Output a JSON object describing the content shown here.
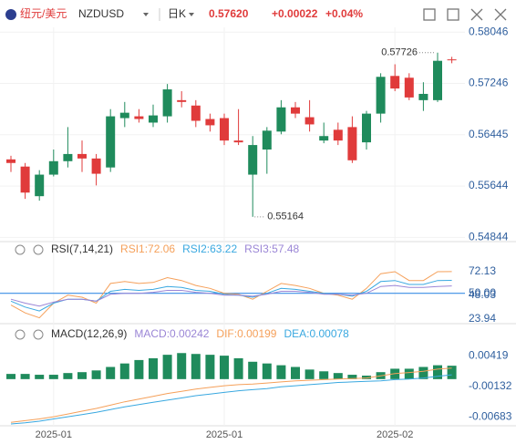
{
  "header": {
    "pair_cn": "纽元/美元",
    "symbol": "NZDUSD",
    "period": "日K",
    "price": "0.57620",
    "change": "+0.00022",
    "change_pct": "+0.04%"
  },
  "chart_data": [
    {
      "type": "candlestick",
      "up_color": "#1f8b5c",
      "down_color": "#e03b3b",
      "grid": true,
      "categories": [
        null,
        null,
        null,
        "2025-01",
        null,
        null,
        null,
        null,
        null,
        null,
        null,
        null,
        null,
        null,
        null,
        "2025-01",
        null,
        null,
        null,
        null,
        null,
        null,
        null,
        null,
        null,
        null,
        null,
        "2025-02",
        null,
        null,
        null,
        null
      ],
      "open": [
        0.5606,
        0.55948,
        0.55486,
        0.55822,
        0.56032,
        0.56144,
        0.56074,
        0.55934,
        0.56704,
        0.56732,
        0.56634,
        0.56732,
        0.56984,
        0.569,
        0.5669,
        0.56704,
        0.56354,
        0.55822,
        0.56214,
        0.56494,
        0.56872,
        0.56718,
        0.56354,
        0.56522,
        0.56564,
        0.56326,
        0.56774,
        0.57362,
        0.57334,
        0.56984,
        0.56984,
        0.5762
      ],
      "high": [
        0.56116,
        0.56004,
        0.55892,
        0.56214,
        0.56564,
        0.56354,
        0.56144,
        0.56844,
        0.56956,
        0.56844,
        0.56914,
        0.57236,
        0.57124,
        0.56984,
        0.56774,
        0.56774,
        0.56844,
        0.56424,
        0.56564,
        0.56984,
        0.56956,
        0.56984,
        0.56634,
        0.56634,
        0.56732,
        0.56816,
        0.57404,
        0.57544,
        0.57404,
        0.57264,
        0.57726,
        0.5766
      ],
      "low": [
        0.55864,
        0.55444,
        0.55416,
        0.55794,
        0.55934,
        0.55864,
        0.55654,
        0.55864,
        0.56564,
        0.56634,
        0.56564,
        0.56634,
        0.56872,
        0.56564,
        0.56494,
        0.56284,
        0.56284,
        0.55164,
        0.55836,
        0.56452,
        0.56704,
        0.56494,
        0.56312,
        0.56284,
        0.56004,
        0.56214,
        0.56634,
        0.57124,
        0.56984,
        0.56816,
        0.56956,
        0.5756
      ],
      "close": [
        0.56004,
        0.55542,
        0.55822,
        0.56032,
        0.56144,
        0.56074,
        0.55836,
        0.56732,
        0.56788,
        0.5669,
        0.56746,
        0.57152,
        0.56956,
        0.56662,
        0.56592,
        0.56354,
        0.56326,
        0.56284,
        0.56508,
        0.56872,
        0.56774,
        0.56606,
        0.56424,
        0.56354,
        0.56046,
        0.56774,
        0.57348,
        0.57166,
        0.57026,
        0.57082,
        0.57598,
        0.5762
      ],
      "ylim": [
        0.5482,
        0.5812
      ],
      "yticks": [
        0.58046,
        0.57246,
        0.56445,
        0.55644,
        0.54844
      ],
      "annotations": [
        {
          "label": "0.57726",
          "value": 0.57726
        },
        {
          "label": "0.55164",
          "value": 0.55164
        }
      ]
    },
    {
      "type": "line",
      "title": "RSI(7,14,21)",
      "ylim": [
        20,
        85
      ],
      "yticks": [
        72.13,
        {
          "value": 50,
          "label": "50.00"
        },
        48.03,
        23.94
      ],
      "ref_line": {
        "value": 50,
        "color": "#3a8ee6"
      },
      "series": [
        {
          "name": "RSI1:72.06",
          "color": "#f5a05a",
          "values": [
            38,
            30,
            25,
            40,
            48,
            46,
            40,
            60,
            62,
            60,
            61,
            66,
            63,
            58,
            55,
            50,
            49,
            44,
            52,
            60,
            58,
            55,
            50,
            48,
            44,
            55,
            70,
            72,
            63,
            63,
            72,
            72.06
          ]
        },
        {
          "name": "RSI2:63.22",
          "color": "#39a8e0",
          "values": [
            42,
            36,
            32,
            40,
            44,
            44,
            42,
            52,
            54,
            53,
            54,
            57,
            56,
            53,
            52,
            49,
            48,
            46,
            50,
            55,
            54,
            52,
            50,
            49,
            47,
            52,
            62,
            63,
            59,
            59,
            63,
            63.22
          ]
        },
        {
          "name": "RSI3:57.48",
          "color": "#9b86d6",
          "values": [
            44,
            40,
            37,
            41,
            44,
            44,
            42,
            49,
            50,
            50,
            51,
            53,
            53,
            51,
            50,
            48,
            48,
            47,
            49,
            52,
            52,
            51,
            49,
            49,
            48,
            50,
            57,
            58,
            56,
            56,
            57,
            57.48
          ]
        }
      ]
    },
    {
      "type": "combo",
      "title": "MACD(12,26,9)",
      "ylim": [
        -0.0081,
        0.0064
      ],
      "yticks": [
        0.00419,
        -0.00132,
        -0.00683
      ],
      "series": [
        {
          "name": "MACD:0.00242",
          "kind": "bar",
          "color": "#1f8b5c",
          "legend_color": "#9b86d6",
          "values": [
            0.00094,
            0.00094,
            0.00079,
            0.00079,
            0.0011,
            0.00126,
            0.00157,
            0.0022,
            0.00283,
            0.00345,
            0.00377,
            0.0044,
            0.00471,
            0.00455,
            0.0044,
            0.00424,
            0.00377,
            0.00314,
            0.00283,
            0.00251,
            0.0022,
            0.00173,
            0.00141,
            0.0011,
            0.00079,
            0.00063,
            0.00126,
            0.00188,
            0.00188,
            0.0022,
            0.00251,
            0.00242
          ]
        },
        {
          "name": "DIF:0.00199",
          "kind": "line",
          "color": "#f5a05a",
          "values": [
            -0.0078,
            -0.0075,
            -0.0072,
            -0.0068,
            -0.0063,
            -0.0058,
            -0.0053,
            -0.0047,
            -0.0041,
            -0.0036,
            -0.0031,
            -0.0026,
            -0.0022,
            -0.0018,
            -0.0015,
            -0.0012,
            -0.001,
            -0.0009,
            -0.0007,
            -0.0005,
            -0.0003,
            -0.0002,
            -0.0001,
            0,
            0.0001,
            0.0002,
            0.0006,
            0.001,
            0.0012,
            0.0014,
            0.0018,
            0.00199
          ]
        },
        {
          "name": "DEA:0.00078",
          "kind": "line",
          "color": "#39a8e0",
          "values": [
            -0.0081,
            -0.0079,
            -0.0076,
            -0.0072,
            -0.0068,
            -0.0064,
            -0.006,
            -0.0055,
            -0.005,
            -0.0046,
            -0.0042,
            -0.0038,
            -0.0034,
            -0.003,
            -0.0027,
            -0.0024,
            -0.0021,
            -0.0019,
            -0.0017,
            -0.0014,
            -0.0012,
            -0.001,
            -0.0008,
            -0.0006,
            -0.0005,
            -0.0004,
            -0.0003,
            -0.0001,
            0,
            0.0002,
            0.0005,
            0.00078
          ]
        }
      ]
    }
  ]
}
